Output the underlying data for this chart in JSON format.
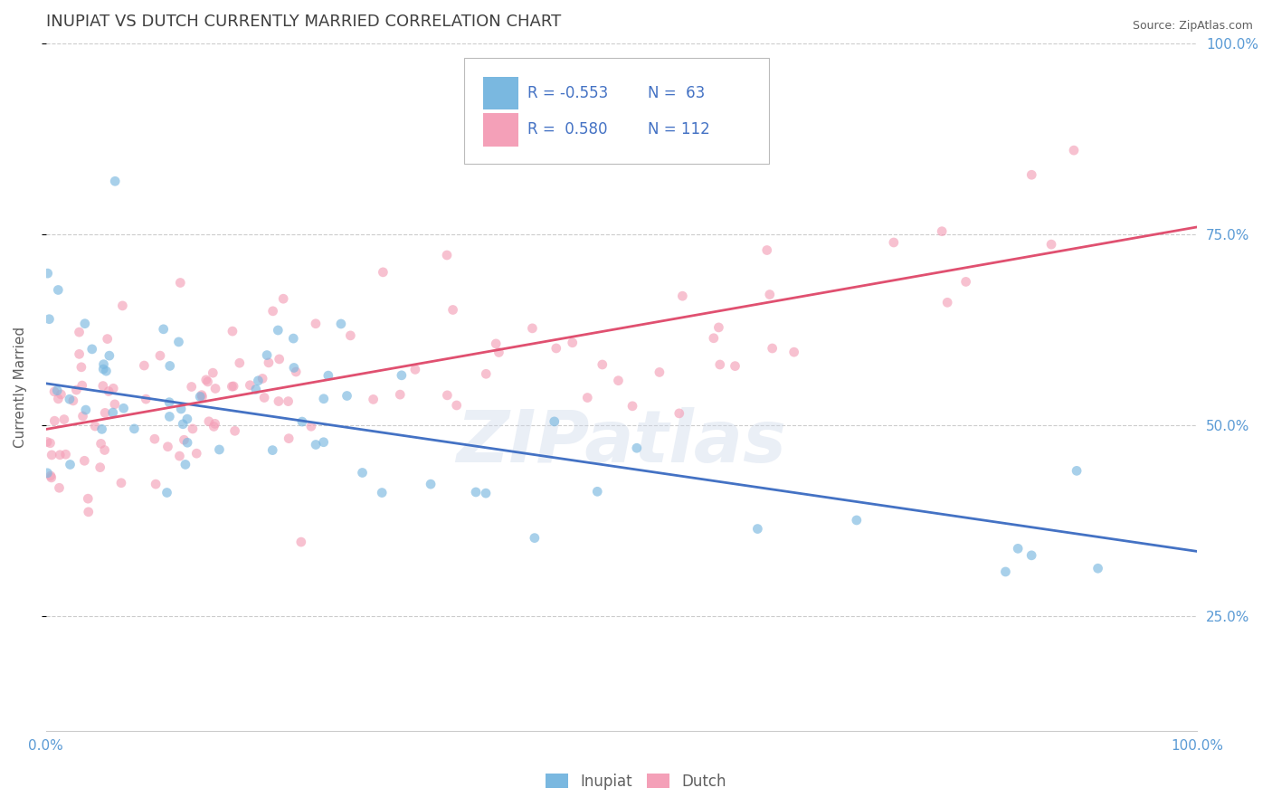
{
  "title": "INUPIAT VS DUTCH CURRENTLY MARRIED CORRELATION CHART",
  "source": "Source: ZipAtlas.com",
  "ylabel_label": "Currently Married",
  "watermark": "ZIPatlas",
  "legend_blue_r": "R = -0.553",
  "legend_blue_n": "N =  63",
  "legend_pink_r": "R =  0.580",
  "legend_pink_n": "N = 112",
  "blue_color": "#7ab8e0",
  "pink_color": "#f4a0b8",
  "blue_line_color": "#4472c4",
  "pink_line_color": "#e05070",
  "title_color": "#404040",
  "axis_label_color": "#606060",
  "grid_color": "#cccccc",
  "tick_color": "#5b9bd5",
  "xmin": 0.0,
  "xmax": 1.0,
  "ymin": 0.1,
  "ymax": 0.9,
  "blue_trend_y_start": 0.555,
  "blue_trend_y_end": 0.335,
  "pink_trend_y_start": 0.495,
  "pink_trend_y_end": 0.76,
  "scatter_size": 60,
  "scatter_alpha": 0.65,
  "ytick_positions": [
    0.25,
    0.5,
    0.75,
    1.0
  ],
  "ytick_labels_right": [
    "25.0%",
    "50.0%",
    "75.0%",
    "100.0%"
  ],
  "xtick_positions": [
    0.0,
    1.0
  ],
  "xtick_labels": [
    "0.0%",
    "100.0%"
  ]
}
